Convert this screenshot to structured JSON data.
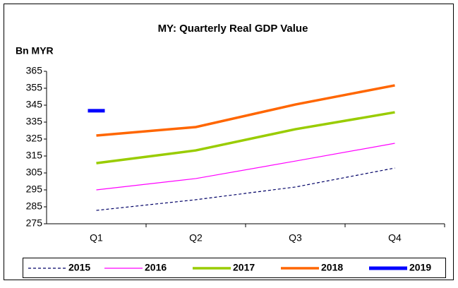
{
  "chart_data": {
    "type": "line",
    "title": "MY: Quarterly Real GDP Value",
    "y_label": "Bn MYR",
    "categories": [
      "Q1",
      "Q2",
      "Q3",
      "Q4"
    ],
    "series": [
      {
        "name": "2015",
        "color": "#000066",
        "style": "dashed",
        "linewidth": 1.2,
        "values": [
          282.9,
          289.2,
          296.7,
          307.9
        ]
      },
      {
        "name": "2016",
        "color": "#ff00ff",
        "style": "solid",
        "linewidth": 1.2,
        "values": [
          295.0,
          301.7,
          312.0,
          322.5
        ]
      },
      {
        "name": "2017",
        "color": "#99cc00",
        "style": "solid",
        "linewidth": 3.5,
        "values": [
          310.8,
          318.3,
          330.8,
          340.8
        ]
      },
      {
        "name": "2018",
        "color": "#ff6600",
        "style": "solid",
        "linewidth": 3.5,
        "values": [
          327.1,
          332.1,
          345.4,
          356.7
        ]
      },
      {
        "name": "2019",
        "color": "#0000ff",
        "style": "solid",
        "linewidth": 5,
        "values": [
          341.7,
          null,
          null,
          null
        ]
      }
    ],
    "ylim": [
      275,
      365
    ],
    "yticks": [
      275,
      285,
      295,
      305,
      315,
      325,
      335,
      345,
      355,
      365
    ],
    "grid": false,
    "legend": "bottom"
  }
}
